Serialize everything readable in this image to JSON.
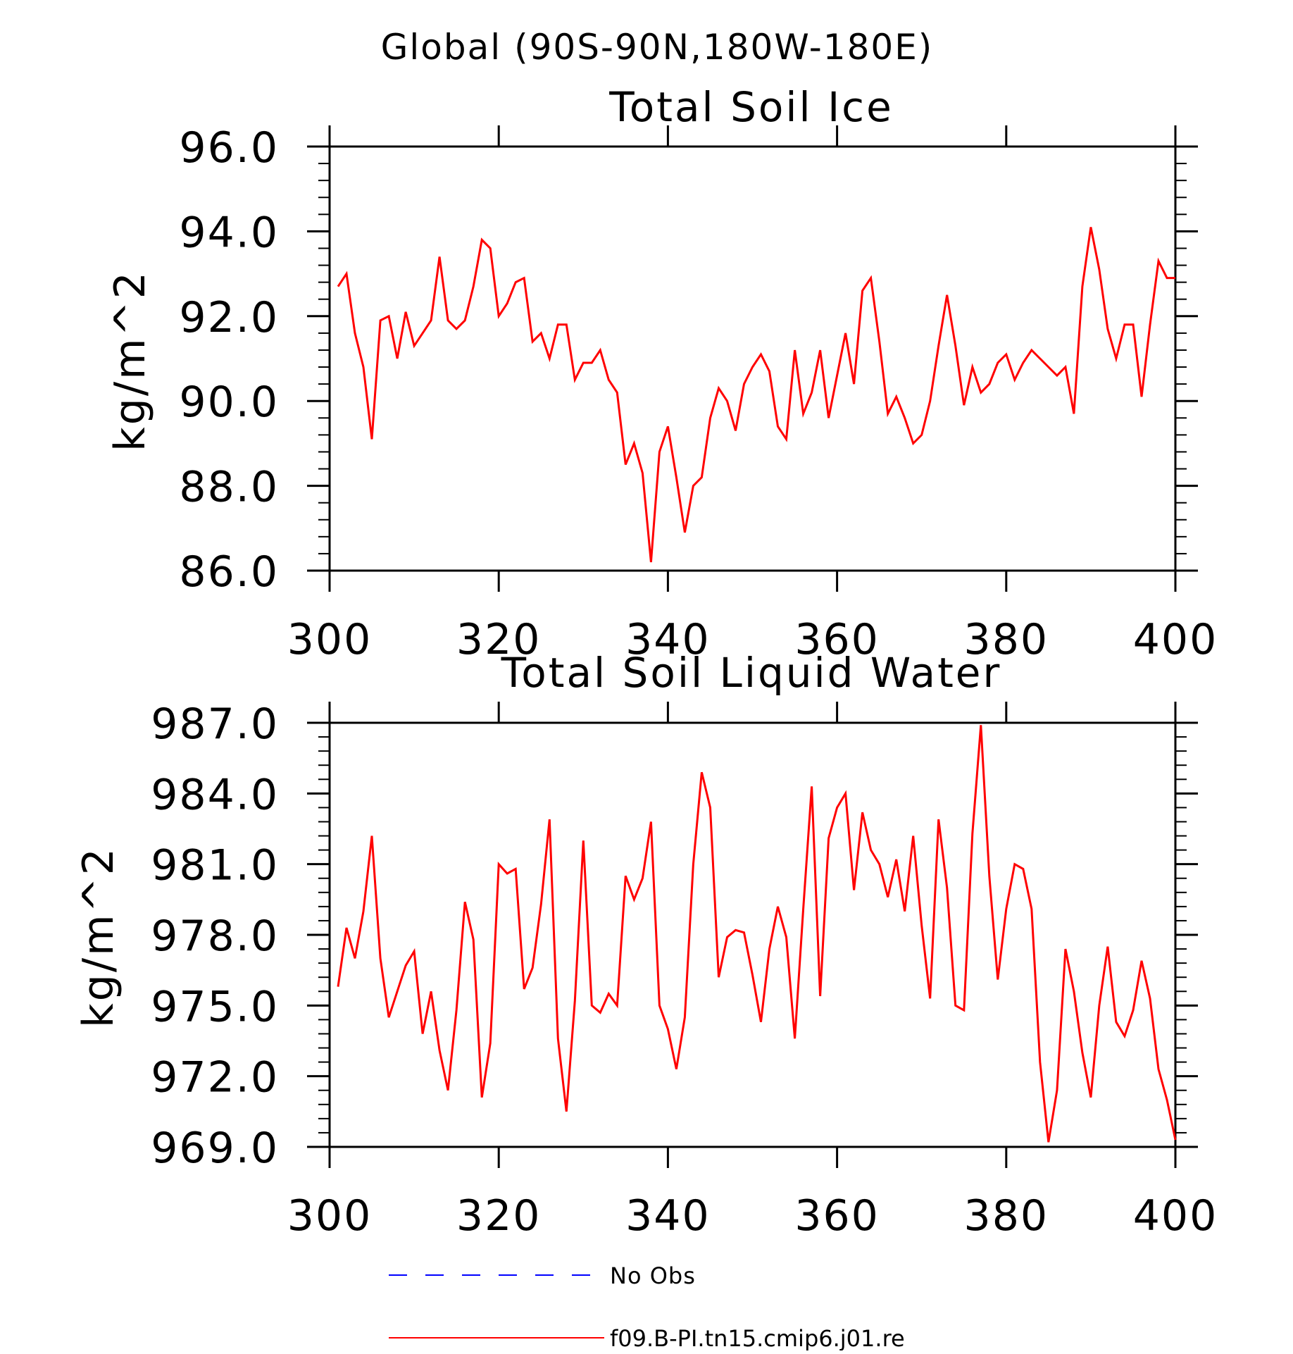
{
  "figure": {
    "title": "Global (90S-90N,180W-180E)"
  },
  "legend": {
    "entries": [
      {
        "label": "No Obs",
        "color": "#0000ff",
        "style": "dashed"
      },
      {
        "label": "f09.B-PI.tn15.cmip6.j01.re",
        "color": "#ff0000",
        "style": "solid"
      }
    ]
  },
  "chart_data": [
    {
      "type": "line",
      "title": "Total Soil Ice",
      "xlabel": "",
      "ylabel": "kg/m^2",
      "xlim": [
        300,
        400
      ],
      "ylim": [
        86.0,
        96.0
      ],
      "xticks": [
        "300",
        "320",
        "340",
        "360",
        "380",
        "400"
      ],
      "yticks": [
        "86.0",
        "88.0",
        "90.0",
        "92.0",
        "94.0",
        "96.0"
      ],
      "grid": false,
      "series": [
        {
          "name": "f09.B-PI.tn15.cmip6.j01.re",
          "color": "#ff0000",
          "x": [
            301,
            302,
            303,
            304,
            305,
            306,
            307,
            308,
            309,
            310,
            311,
            312,
            313,
            314,
            315,
            316,
            317,
            318,
            319,
            320,
            321,
            322,
            323,
            324,
            325,
            326,
            327,
            328,
            329,
            330,
            331,
            332,
            333,
            334,
            335,
            336,
            337,
            338,
            339,
            340,
            341,
            342,
            343,
            344,
            345,
            346,
            347,
            348,
            349,
            350,
            351,
            352,
            353,
            354,
            355,
            356,
            357,
            358,
            359,
            360,
            361,
            362,
            363,
            364,
            365,
            366,
            367,
            368,
            369,
            370,
            371,
            372,
            373,
            374,
            375,
            376,
            377,
            378,
            379,
            380,
            381,
            382,
            383,
            384,
            385,
            386,
            387,
            388,
            389,
            390,
            391,
            392,
            393,
            394,
            395,
            396,
            397,
            398,
            399,
            400
          ],
          "values": [
            92.7,
            93.0,
            91.6,
            90.8,
            89.1,
            91.9,
            92.0,
            91.0,
            92.1,
            91.3,
            91.6,
            91.9,
            93.4,
            91.9,
            91.7,
            91.9,
            92.7,
            93.8,
            93.6,
            92.0,
            92.3,
            92.8,
            92.9,
            91.4,
            91.6,
            91.0,
            91.8,
            91.8,
            90.5,
            90.9,
            90.9,
            91.2,
            90.5,
            90.2,
            88.5,
            89.0,
            88.3,
            86.2,
            88.8,
            89.4,
            88.2,
            86.9,
            88.0,
            88.2,
            89.6,
            90.3,
            90.0,
            89.3,
            90.4,
            90.8,
            91.1,
            90.7,
            89.4,
            89.1,
            91.2,
            89.7,
            90.2,
            91.2,
            89.6,
            90.6,
            91.6,
            90.4,
            92.6,
            92.9,
            91.4,
            89.7,
            90.1,
            89.6,
            89.0,
            89.2,
            90.0,
            91.3,
            92.5,
            91.3,
            89.9,
            90.8,
            90.2,
            90.4,
            90.9,
            91.1,
            90.5,
            90.9,
            91.2,
            91.0,
            90.8,
            90.6,
            90.8,
            89.7,
            92.7,
            94.1,
            93.1,
            91.7,
            91.0,
            91.8,
            91.8,
            90.1,
            91.8,
            93.3,
            92.9,
            92.9
          ]
        }
      ]
    },
    {
      "type": "line",
      "title": "Total Soil Liquid Water",
      "xlabel": "",
      "ylabel": "kg/m^2",
      "xlim": [
        300,
        400
      ],
      "ylim": [
        969.0,
        987.0
      ],
      "xticks": [
        "300",
        "320",
        "340",
        "360",
        "380",
        "400"
      ],
      "yticks": [
        "969.0",
        "972.0",
        "975.0",
        "978.0",
        "981.0",
        "984.0",
        "987.0"
      ],
      "grid": false,
      "series": [
        {
          "name": "f09.B-PI.tn15.cmip6.j01.re",
          "color": "#ff0000",
          "x": [
            301,
            302,
            303,
            304,
            305,
            306,
            307,
            308,
            309,
            310,
            311,
            312,
            313,
            314,
            315,
            316,
            317,
            318,
            319,
            320,
            321,
            322,
            323,
            324,
            325,
            326,
            327,
            328,
            329,
            330,
            331,
            332,
            333,
            334,
            335,
            336,
            337,
            338,
            339,
            340,
            341,
            342,
            343,
            344,
            345,
            346,
            347,
            348,
            349,
            350,
            351,
            352,
            353,
            354,
            355,
            356,
            357,
            358,
            359,
            360,
            361,
            362,
            363,
            364,
            365,
            366,
            367,
            368,
            369,
            370,
            371,
            372,
            373,
            374,
            375,
            376,
            377,
            378,
            379,
            380,
            381,
            382,
            383,
            384,
            385,
            386,
            387,
            388,
            389,
            390,
            391,
            392,
            393,
            394,
            395,
            396,
            397,
            398,
            399,
            400
          ],
          "values": [
            975.8,
            978.3,
            977.0,
            979.0,
            982.2,
            977.0,
            974.5,
            975.6,
            976.7,
            977.3,
            973.8,
            975.6,
            973.1,
            971.4,
            974.8,
            979.4,
            977.8,
            971.1,
            973.4,
            981.0,
            980.6,
            980.8,
            975.7,
            976.6,
            979.3,
            982.9,
            973.6,
            970.5,
            975.2,
            982.0,
            975.0,
            974.7,
            975.5,
            975.0,
            980.5,
            979.5,
            980.4,
            982.8,
            975.0,
            974.0,
            972.3,
            974.5,
            981.0,
            984.9,
            983.4,
            976.2,
            977.9,
            978.2,
            978.1,
            976.3,
            974.3,
            977.4,
            979.2,
            977.9,
            973.6,
            979.1,
            984.3,
            975.4,
            982.1,
            983.4,
            984.0,
            979.9,
            983.2,
            981.6,
            981.0,
            979.6,
            981.2,
            979.0,
            982.2,
            978.4,
            975.3,
            982.9,
            980.0,
            975.0,
            974.8,
            982.3,
            986.9,
            980.5,
            976.1,
            979.1,
            981.0,
            980.8,
            979.1,
            972.6,
            969.2,
            971.4,
            977.4,
            975.6,
            973.0,
            971.1,
            975.0,
            977.5,
            974.3,
            973.7,
            974.8,
            976.9,
            975.3,
            972.3,
            971.0,
            969.3
          ]
        }
      ]
    }
  ]
}
